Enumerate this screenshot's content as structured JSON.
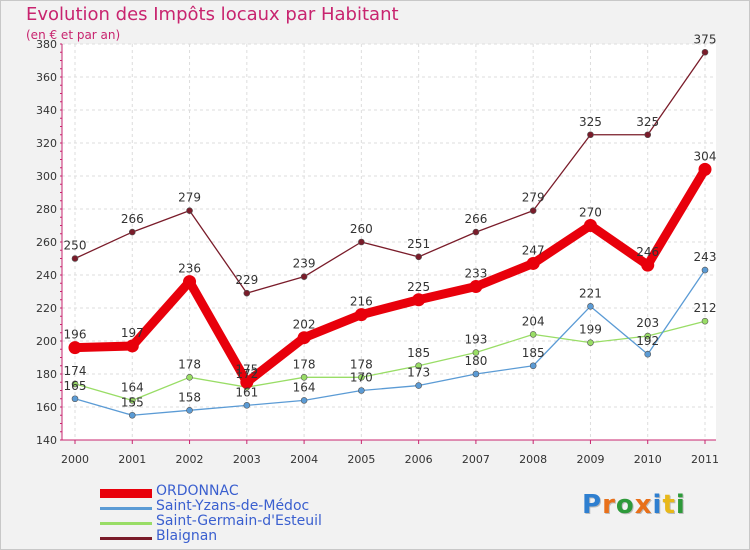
{
  "header": {
    "title": "Evolution des Impôts locaux par Habitant",
    "subtitle": "(en € et par an)"
  },
  "logo": {
    "text": "Proxiti",
    "letter_colors": [
      "#2e7fd0",
      "#e8701a",
      "#2e9a3a",
      "#e8701a",
      "#2e7fd0",
      "#e8b81a",
      "#2e9a3a"
    ]
  },
  "chart_data": {
    "type": "line",
    "title": "Evolution des Impôts locaux par Habitant",
    "subtitle": "(en € et par an)",
    "x": [
      "2000",
      "2001",
      "2002",
      "2003",
      "2004",
      "2005",
      "2006",
      "2007",
      "2008",
      "2009",
      "2010",
      "2011"
    ],
    "ylim": [
      140,
      380
    ],
    "yticks": [
      140,
      160,
      180,
      200,
      220,
      240,
      260,
      280,
      300,
      320,
      340,
      360,
      380
    ],
    "grid": true,
    "legend_position": "bottom-left",
    "series": [
      {
        "name": "ORDONNAC",
        "color": "#e8000b",
        "emphasis": true,
        "values": [
          196,
          197,
          236,
          175,
          202,
          216,
          225,
          233,
          247,
          270,
          246,
          304
        ],
        "labels": [
          "196",
          "197",
          "236",
          "175",
          "202",
          "216",
          "225",
          "233",
          "247",
          "270",
          "246",
          "304"
        ]
      },
      {
        "name": "Saint-Yzans-de-Médoc",
        "color": "#5b9bd5",
        "emphasis": false,
        "values": [
          165,
          155,
          158,
          161,
          164,
          170,
          173,
          180,
          185,
          221,
          192,
          243
        ],
        "labels": [
          "165",
          "155",
          "158",
          "161",
          "164",
          "170",
          "173",
          "180",
          "185",
          "221",
          "192",
          "243"
        ]
      },
      {
        "name": "Saint-Germain-d'Esteuil",
        "color": "#99dd66",
        "emphasis": false,
        "values": [
          174,
          164,
          178,
          172,
          178,
          178,
          185,
          193,
          204,
          199,
          203,
          212
        ],
        "labels": [
          "174",
          "164",
          "178",
          "172",
          "178",
          "178",
          "185",
          "193",
          "204",
          "199",
          "203",
          "212"
        ]
      },
      {
        "name": "Blaignan",
        "color": "#7a1c2a",
        "emphasis": false,
        "values": [
          250,
          266,
          279,
          229,
          239,
          260,
          251,
          266,
          279,
          325,
          325,
          375
        ],
        "labels": [
          "250",
          "266",
          "279",
          "229",
          "239",
          "260",
          "251",
          "266",
          "279",
          "325",
          "325",
          "375"
        ]
      }
    ]
  }
}
